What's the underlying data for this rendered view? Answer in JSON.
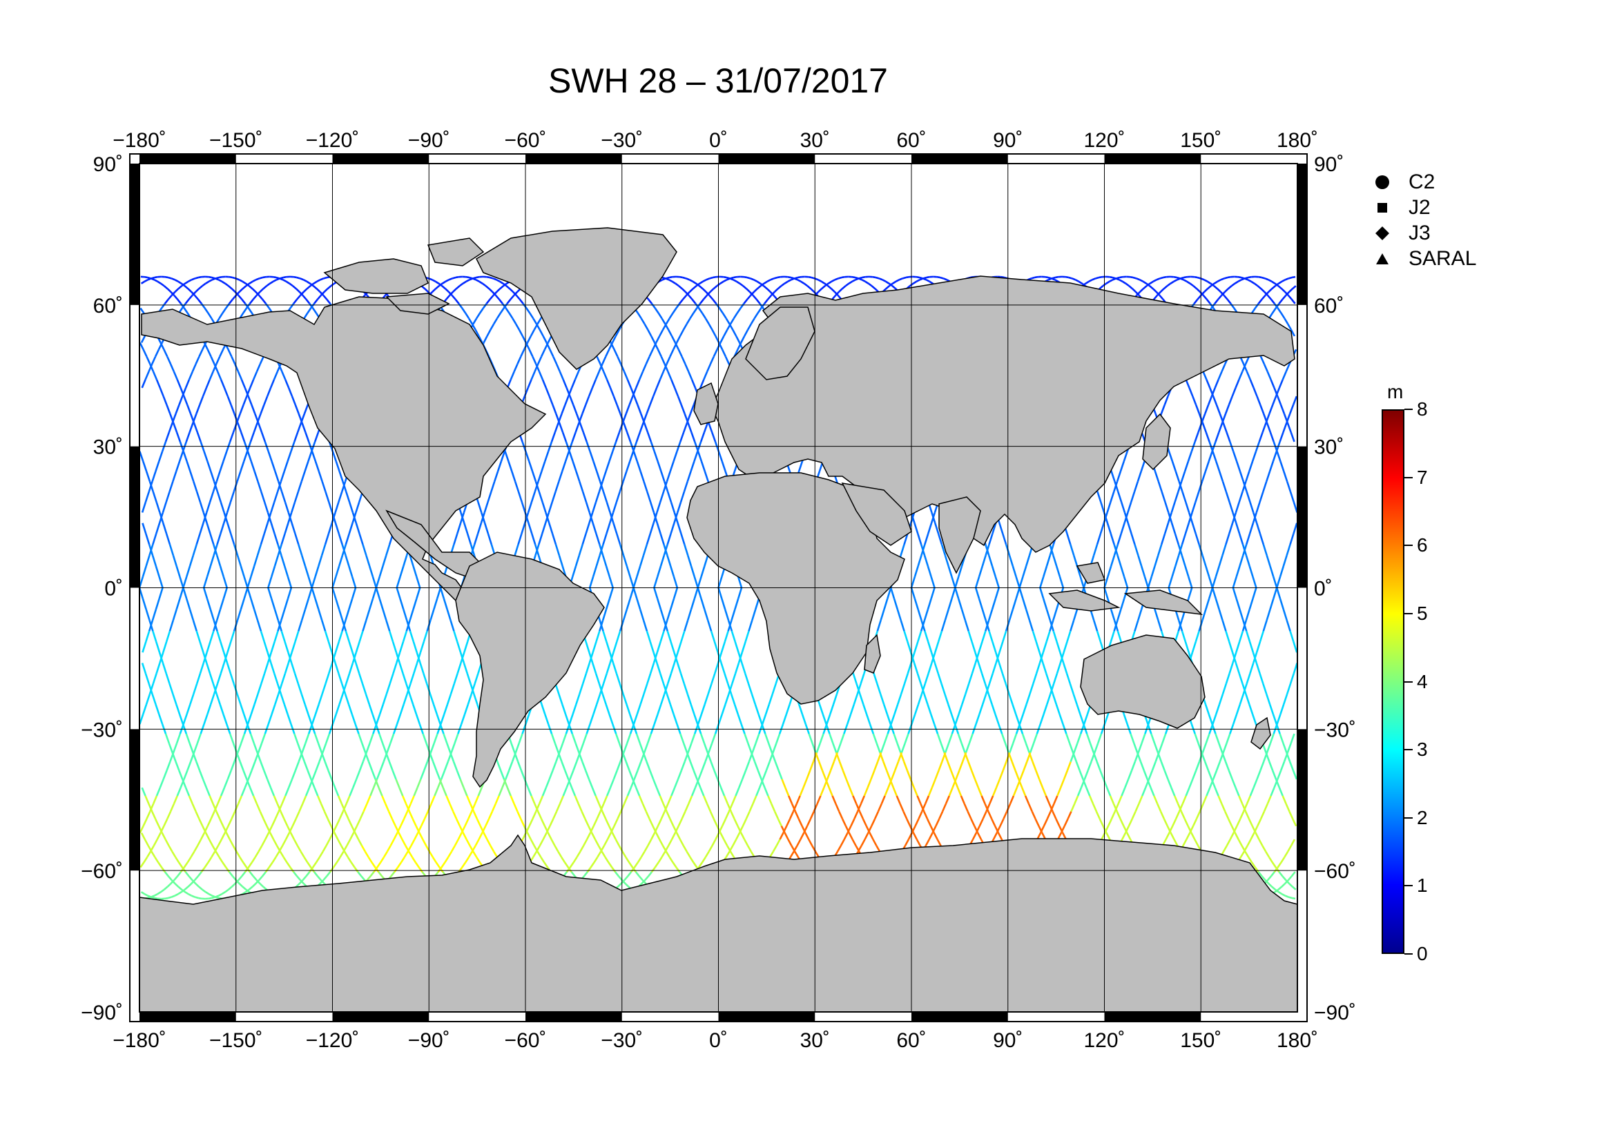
{
  "title": "SWH 28 – 31/07/2017",
  "map": {
    "projection": "equirectangular",
    "lon_range": [
      -180,
      180
    ],
    "lat_range": [
      -90,
      90
    ],
    "lon_ticks": [
      "−180˚",
      "−150˚",
      "−120˚",
      "−90˚",
      "−60˚",
      "−30˚",
      "0˚",
      "30˚",
      "60˚",
      "90˚",
      "120˚",
      "150˚",
      "180˚"
    ],
    "lat_ticks_left": [
      "90˚",
      "60˚",
      "30˚",
      "0˚",
      "−30˚",
      "−60˚",
      "−90˚"
    ],
    "lat_ticks_right": [
      "90˚",
      "60˚",
      "30˚",
      "0˚",
      "−30˚",
      "−60˚",
      "−90˚"
    ],
    "grid": true,
    "land_color": "#bebebe",
    "ocean_color": "#ffffff"
  },
  "legend": {
    "position": "top-right",
    "items": [
      {
        "label": "C2",
        "marker": "circle"
      },
      {
        "label": "J2",
        "marker": "square"
      },
      {
        "label": "J3",
        "marker": "diamond"
      },
      {
        "label": "SARAL",
        "marker": "triangle"
      }
    ]
  },
  "colorbar": {
    "unit": "m",
    "min": 0,
    "max": 8,
    "ticks": [
      "0",
      "1",
      "2",
      "3",
      "4",
      "5",
      "6",
      "7",
      "8"
    ],
    "colormap": [
      "#00008f",
      "#0000ff",
      "#007fff",
      "#00ffff",
      "#7fff7f",
      "#ffff00",
      "#ff7f00",
      "#ff0000",
      "#7f0000"
    ]
  },
  "chart_data": {
    "type": "scatter",
    "title": "SWH 28 – 31/07/2017",
    "variable": "SWH",
    "unit": "m",
    "xlim": [
      -180,
      180
    ],
    "ylim": [
      -90,
      90
    ],
    "series": [
      {
        "name": "C2",
        "marker": "circle"
      },
      {
        "name": "J2",
        "marker": "square"
      },
      {
        "name": "J3",
        "marker": "diamond"
      },
      {
        "name": "SARAL",
        "marker": "triangle"
      }
    ],
    "swh_bands": [
      {
        "lat": [
          60,
          66
        ],
        "swh": 1.3
      },
      {
        "lat": [
          45,
          60
        ],
        "swh": 1.8
      },
      {
        "lat": [
          30,
          45
        ],
        "swh": 1.6
      },
      {
        "lat": [
          10,
          30
        ],
        "swh": 1.8
      },
      {
        "lat": [
          -10,
          10
        ],
        "swh": 2.0
      },
      {
        "lat": [
          -30,
          -10
        ],
        "swh": 2.7
      },
      {
        "lat": [
          -45,
          -30
        ],
        "swh": 3.6
      },
      {
        "lat": [
          -60,
          -45
        ],
        "swh": 4.6
      },
      {
        "lat": [
          -66,
          -60
        ],
        "swh": 3.8
      }
    ]
  }
}
